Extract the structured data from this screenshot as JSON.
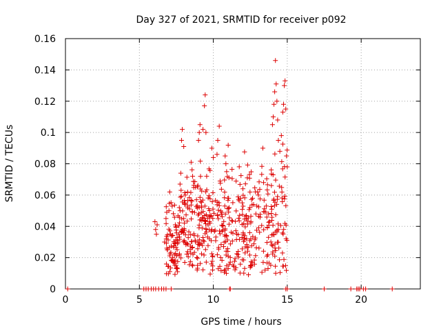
{
  "chart_data": {
    "type": "scatter",
    "title": "Day 327 of 2021, SRMTID for receiver p092",
    "xlabel": "GPS time / hours",
    "ylabel": "SRMTID / TECUs",
    "xlim": [
      0,
      24
    ],
    "ylim": [
      0,
      0.16
    ],
    "x_ticks": [
      0,
      5,
      10,
      15,
      20
    ],
    "x_tick_labels": [
      "0",
      "5",
      "10",
      "15",
      "20"
    ],
    "y_ticks": [
      0,
      0.02,
      0.04,
      0.06,
      0.08,
      0.1,
      0.12,
      0.14,
      0.16
    ],
    "y_tick_labels": [
      "0",
      "0.02",
      "0.04",
      "0.06",
      "0.08",
      "0.1",
      "0.12",
      "0.14",
      "0.16"
    ],
    "grid": true,
    "marker": "+",
    "color": "#dd0000",
    "seed": 92327,
    "series": [
      {
        "name": "SRMTID",
        "zero_points_x": [
          0.15,
          5.3,
          5.45,
          5.6,
          5.8,
          5.95,
          6.1,
          6.3,
          6.5,
          6.65,
          6.8,
          7.15,
          11.1,
          11.15,
          14.9,
          15.0,
          17.5,
          19.3,
          19.7,
          19.8,
          19.9,
          20.15,
          20.3,
          22.1
        ],
        "cluster_points": [
          [
            6.05,
            0.043
          ],
          [
            6.1,
            0.038
          ],
          [
            6.15,
            0.035
          ],
          [
            6.2,
            0.041
          ],
          [
            6.7,
            0.03
          ],
          [
            6.8,
            0.045
          ],
          [
            6.85,
            0.049
          ],
          [
            6.9,
            0.025
          ],
          [
            7.0,
            0.05
          ],
          [
            7.05,
            0.062
          ],
          [
            7.25,
            0.02
          ],
          [
            7.3,
            0.017
          ],
          [
            7.4,
            0.015
          ],
          [
            7.5,
            0.013
          ],
          [
            7.55,
            0.031
          ],
          [
            7.7,
            0.052
          ],
          [
            7.75,
            0.067
          ],
          [
            7.8,
            0.074
          ],
          [
            7.85,
            0.095
          ],
          [
            7.9,
            0.102
          ],
          [
            8.0,
            0.091
          ],
          [
            8.1,
            0.06
          ],
          [
            8.5,
            0.081
          ],
          [
            8.6,
            0.072
          ],
          [
            8.8,
            0.065
          ],
          [
            9.0,
            0.095
          ],
          [
            9.05,
            0.1
          ],
          [
            9.1,
            0.105
          ],
          [
            9.3,
            0.102
          ],
          [
            9.4,
            0.117
          ],
          [
            9.45,
            0.124
          ],
          [
            9.5,
            0.1
          ],
          [
            9.55,
            0.072
          ],
          [
            9.9,
            0.09
          ],
          [
            10.0,
            0.084
          ],
          [
            10.25,
            0.086
          ],
          [
            10.3,
            0.095
          ],
          [
            10.4,
            0.104
          ],
          [
            10.8,
            0.085
          ],
          [
            10.85,
            0.08
          ],
          [
            10.9,
            0.075
          ],
          [
            12.0,
            0.064
          ],
          [
            12.3,
            0.071
          ],
          [
            13.0,
            0.062
          ],
          [
            13.35,
            0.09
          ],
          [
            13.4,
            0.068
          ],
          [
            13.5,
            0.012
          ],
          [
            13.7,
            0.013
          ],
          [
            14.0,
            0.105
          ],
          [
            14.05,
            0.11
          ],
          [
            14.1,
            0.118
          ],
          [
            14.15,
            0.126
          ],
          [
            14.2,
            0.146
          ],
          [
            14.25,
            0.131
          ],
          [
            14.3,
            0.12
          ],
          [
            14.35,
            0.108
          ],
          [
            14.4,
            0.095
          ],
          [
            14.5,
            0.088
          ],
          [
            14.6,
            0.098
          ],
          [
            14.7,
            0.113
          ],
          [
            14.75,
            0.118
          ],
          [
            14.8,
            0.13
          ],
          [
            14.85,
            0.133
          ],
          [
            14.9,
            0.115
          ],
          [
            14.95,
            0.085
          ],
          [
            15.0,
            0.078
          ]
        ],
        "scatter_band": {
          "x_range": [
            6.8,
            15.0
          ],
          "count": 560,
          "y_center_low": 0.03,
          "y_center_high": 0.055,
          "y_spread": 0.018
        }
      }
    ]
  }
}
